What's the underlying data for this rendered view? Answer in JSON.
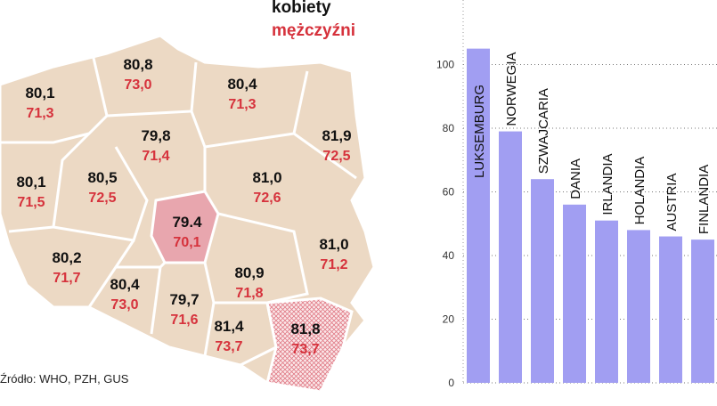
{
  "legend": {
    "women": "kobiety",
    "men": "mężczyźni"
  },
  "map": {
    "regions": [
      {
        "women": "80,8",
        "men": "73,0"
      },
      {
        "women": "80,1",
        "men": "71,3"
      },
      {
        "women": "80,4",
        "men": "71,3"
      },
      {
        "women": "79,8",
        "men": "71,4"
      },
      {
        "women": "81,9",
        "men": "72,5"
      },
      {
        "women": "80,1",
        "men": "71,5"
      },
      {
        "women": "80,5",
        "men": "72,5"
      },
      {
        "women": "81,0",
        "men": "72,6"
      },
      {
        "women": "79.4",
        "men": "70,1"
      },
      {
        "women": "81,0",
        "men": "71,2"
      },
      {
        "women": "80,2",
        "men": "71,7"
      },
      {
        "women": "80,4",
        "men": "73,0"
      },
      {
        "women": "80,9",
        "men": "71,8"
      },
      {
        "women": "79,7",
        "men": "71,6"
      },
      {
        "women": "81,4",
        "men": "73,7"
      },
      {
        "women": "81,8",
        "men": "73,7"
      }
    ]
  },
  "source": "Źródło: WHO, PZH, GUS",
  "chart_data": {
    "type": "bar",
    "categories": [
      "LUKSEMBURG",
      "NORWEGIA",
      "SZWAJCARIA",
      "DANIA",
      "IRLANDIA",
      "HOLANDIA",
      "AUSTRIA",
      "FINLANDIA"
    ],
    "values": [
      105,
      79,
      64,
      56,
      51,
      48,
      46,
      45
    ],
    "color": "#a19ef2",
    "ylim": [
      0,
      120
    ],
    "yticks": [
      0,
      20,
      40,
      60,
      80,
      100
    ],
    "grid": true
  }
}
